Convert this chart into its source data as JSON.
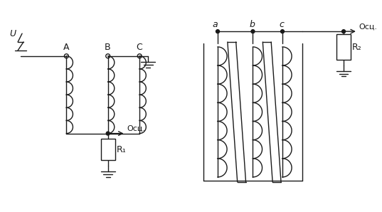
{
  "background_color": "#ffffff",
  "line_color": "#1a1a1a",
  "line_width": 1.0,
  "fig_width": 5.37,
  "fig_height": 2.98,
  "dpi": 100,
  "labels": {
    "U": "U",
    "A": "A",
    "B": "B",
    "C": "C",
    "Osc1": "Осц.",
    "Osc2": "Осц.",
    "R1": "R₁",
    "R2": "R₂",
    "a": "a",
    "b": "b",
    "c": "c"
  }
}
